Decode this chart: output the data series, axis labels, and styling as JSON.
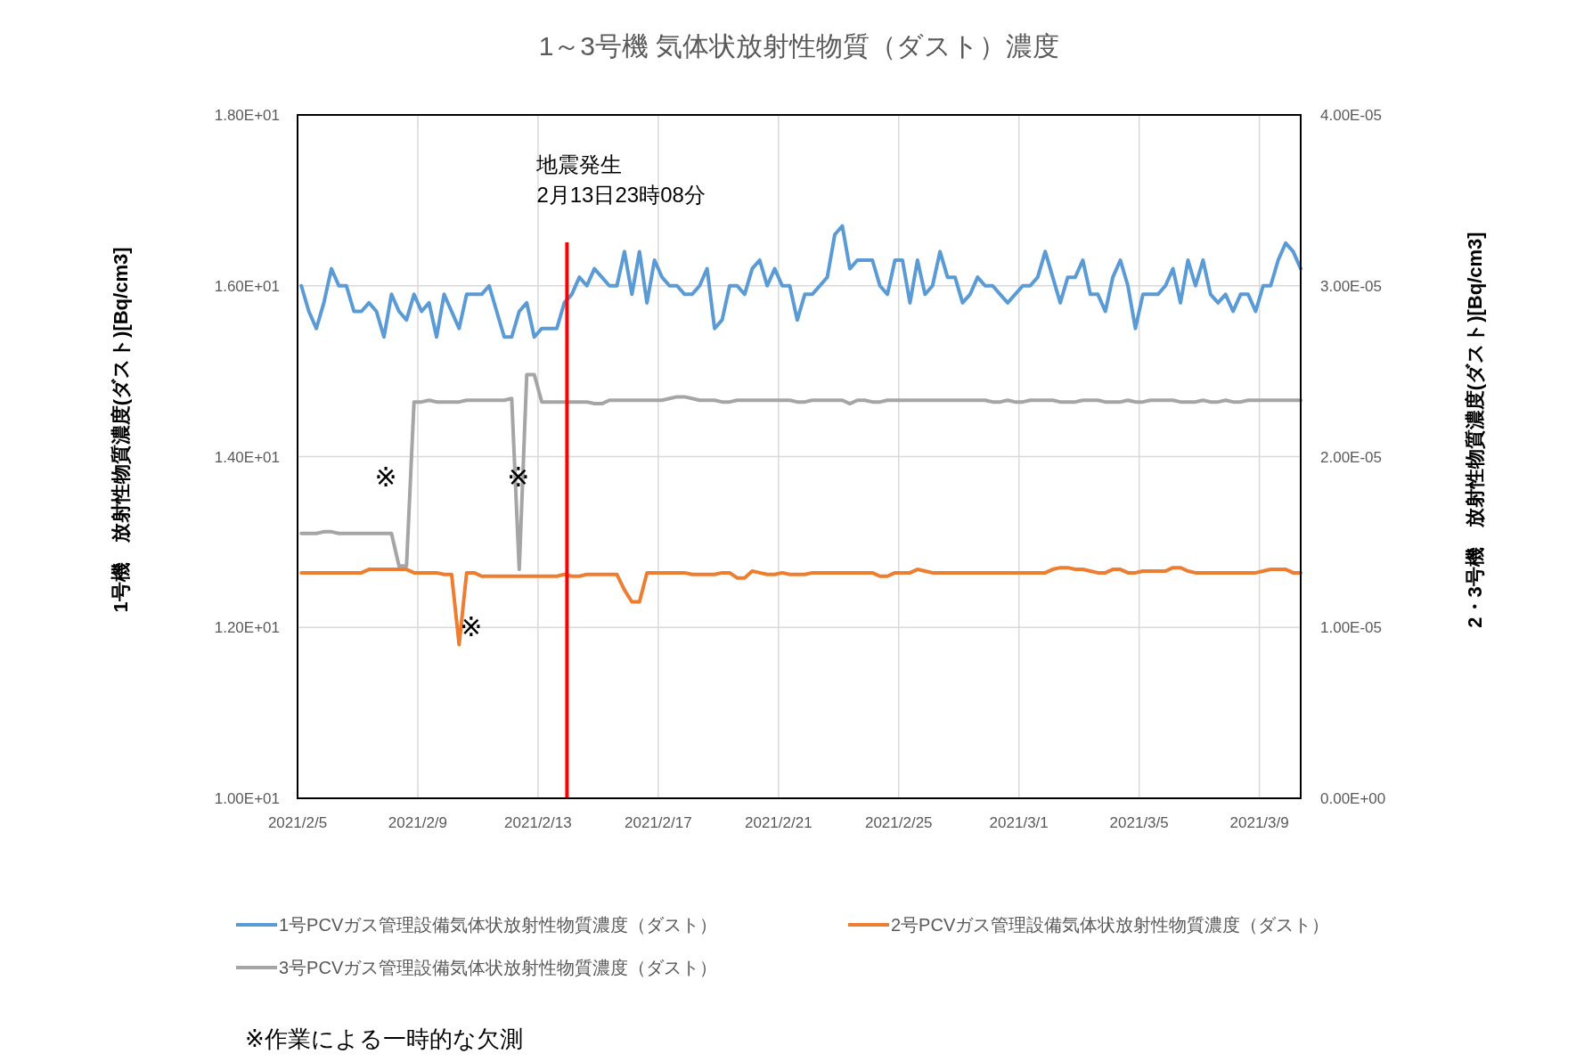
{
  "chart_data": {
    "type": "line",
    "title": "1～3号機 気体状放射性物質（ダスト）濃度",
    "ylabel": "1号機　放射性物質濃度(ダスト)[Bq/cm3]",
    "y2label": "2・3号機　放射性物質濃度(ダスト)[Bq/cm3]",
    "x": [
      "2021-02-05T03:00",
      "2021-02-05T09:00",
      "2021-02-05T15:00",
      "2021-02-05T21:00",
      "2021-02-06T03:00",
      "2021-02-06T09:00",
      "2021-02-06T15:00",
      "2021-02-06T21:00",
      "2021-02-07T03:00",
      "2021-02-07T09:00",
      "2021-02-07T15:00",
      "2021-02-07T21:00",
      "2021-02-08T03:00",
      "2021-02-08T09:00",
      "2021-02-08T15:00",
      "2021-02-08T21:00",
      "2021-02-09T03:00",
      "2021-02-09T09:00",
      "2021-02-09T15:00",
      "2021-02-09T21:00",
      "2021-02-10T03:00",
      "2021-02-10T09:00",
      "2021-02-10T15:00",
      "2021-02-10T21:00",
      "2021-02-11T03:00",
      "2021-02-11T09:00",
      "2021-02-11T15:00",
      "2021-02-11T21:00",
      "2021-02-12T03:00",
      "2021-02-12T09:00",
      "2021-02-12T15:00",
      "2021-02-12T21:00",
      "2021-02-13T03:00",
      "2021-02-13T09:00",
      "2021-02-13T15:00",
      "2021-02-13T21:00",
      "2021-02-14T03:00",
      "2021-02-14T09:00",
      "2021-02-14T15:00",
      "2021-02-14T21:00",
      "2021-02-15T03:00",
      "2021-02-15T09:00",
      "2021-02-15T15:00",
      "2021-02-15T21:00",
      "2021-02-16T03:00",
      "2021-02-16T09:00",
      "2021-02-16T15:00",
      "2021-02-16T21:00",
      "2021-02-17T03:00",
      "2021-02-17T09:00",
      "2021-02-17T15:00",
      "2021-02-17T21:00",
      "2021-02-18T03:00",
      "2021-02-18T09:00",
      "2021-02-18T15:00",
      "2021-02-18T21:00",
      "2021-02-19T03:00",
      "2021-02-19T09:00",
      "2021-02-19T15:00",
      "2021-02-19T21:00",
      "2021-02-20T03:00",
      "2021-02-20T09:00",
      "2021-02-20T15:00",
      "2021-02-20T21:00",
      "2021-02-21T03:00",
      "2021-02-21T09:00",
      "2021-02-21T15:00",
      "2021-02-21T21:00",
      "2021-02-22T03:00",
      "2021-02-22T09:00",
      "2021-02-22T15:00",
      "2021-02-22T21:00",
      "2021-02-23T03:00",
      "2021-02-23T09:00",
      "2021-02-23T15:00",
      "2021-02-23T21:00",
      "2021-02-24T03:00",
      "2021-02-24T09:00",
      "2021-02-24T15:00",
      "2021-02-24T21:00",
      "2021-02-25T03:00",
      "2021-02-25T09:00",
      "2021-02-25T15:00",
      "2021-02-25T21:00",
      "2021-02-26T03:00",
      "2021-02-26T09:00",
      "2021-02-26T15:00",
      "2021-02-26T21:00",
      "2021-02-27T03:00",
      "2021-02-27T09:00",
      "2021-02-27T15:00",
      "2021-02-27T21:00",
      "2021-02-28T03:00",
      "2021-02-28T09:00",
      "2021-02-28T15:00",
      "2021-02-28T21:00",
      "2021-03-01T03:00",
      "2021-03-01T09:00",
      "2021-03-01T15:00",
      "2021-03-01T21:00",
      "2021-03-02T03:00",
      "2021-03-02T09:00",
      "2021-03-02T15:00",
      "2021-03-02T21:00",
      "2021-03-03T03:00",
      "2021-03-03T09:00",
      "2021-03-03T15:00",
      "2021-03-03T21:00",
      "2021-03-04T03:00",
      "2021-03-04T09:00",
      "2021-03-04T15:00",
      "2021-03-04T21:00",
      "2021-03-05T03:00",
      "2021-03-05T09:00",
      "2021-03-05T15:00",
      "2021-03-05T21:00",
      "2021-03-06T03:00",
      "2021-03-06T09:00",
      "2021-03-06T15:00",
      "2021-03-06T21:00",
      "2021-03-07T03:00",
      "2021-03-07T09:00",
      "2021-03-07T15:00",
      "2021-03-07T21:00",
      "2021-03-08T03:00",
      "2021-03-08T09:00",
      "2021-03-08T15:00",
      "2021-03-08T21:00",
      "2021-03-09T03:00",
      "2021-03-09T09:00",
      "2021-03-09T15:00",
      "2021-03-09T21:00",
      "2021-03-10T03:00",
      "2021-03-10T09:00"
    ],
    "series": [
      {
        "name": "1号PCVガス管理設備気体状放射性物質濃度（ダスト）",
        "color": "#5b9bd5",
        "values": [
          16.0,
          15.7,
          15.5,
          15.8,
          16.2,
          16.0,
          16.0,
          15.7,
          15.7,
          15.8,
          15.7,
          15.4,
          15.9,
          15.7,
          15.6,
          15.9,
          15.7,
          15.8,
          15.4,
          15.9,
          15.7,
          15.5,
          15.9,
          15.9,
          15.9,
          16.0,
          15.7,
          15.4,
          15.4,
          15.7,
          15.8,
          15.4,
          15.5,
          15.5,
          15.5,
          15.8,
          15.9,
          16.1,
          16.0,
          16.2,
          16.1,
          16.0,
          16.0,
          16.4,
          15.9,
          16.4,
          15.8,
          16.3,
          16.1,
          16.0,
          16.0,
          15.9,
          15.9,
          16.0,
          16.2,
          15.5,
          15.6,
          16.0,
          16.0,
          15.9,
          16.2,
          16.3,
          16.0,
          16.2,
          16.0,
          16.0,
          15.6,
          15.9,
          15.9,
          16.0,
          16.1,
          16.6,
          16.7,
          16.2,
          16.3,
          16.3,
          16.3,
          16.0,
          15.9,
          16.3,
          16.3,
          15.8,
          16.3,
          15.9,
          16.0,
          16.4,
          16.1,
          16.1,
          15.8,
          15.9,
          16.1,
          16.0,
          16.0,
          15.9,
          15.8,
          15.9,
          16.0,
          16.0,
          16.1,
          16.4,
          16.1,
          15.8,
          16.1,
          16.1,
          16.3,
          15.9,
          15.9,
          15.7,
          16.1,
          16.3,
          16.0,
          15.5,
          15.9,
          15.9,
          15.9,
          16.0,
          16.2,
          15.8,
          16.3,
          16.0,
          16.3,
          15.9,
          15.8,
          15.9,
          15.7,
          15.9,
          15.9,
          15.7,
          16.0,
          16.0,
          16.3,
          16.5,
          16.4,
          16.2
        ]
      },
      {
        "name": "2号PCVガス管理設備気体状放射性物質濃度（ダスト）",
        "color": "#ed7d31",
        "axis": "y2",
        "values": [
          1.32e-05,
          1.32e-05,
          1.32e-05,
          1.32e-05,
          1.32e-05,
          1.32e-05,
          1.32e-05,
          1.32e-05,
          1.32e-05,
          1.34e-05,
          1.34e-05,
          1.34e-05,
          1.34e-05,
          1.34e-05,
          1.34e-05,
          1.32e-05,
          1.32e-05,
          1.32e-05,
          1.32e-05,
          1.31e-05,
          1.31e-05,
          9e-06,
          1.32e-05,
          1.32e-05,
          1.3e-05,
          1.3e-05,
          1.3e-05,
          1.3e-05,
          1.3e-05,
          1.3e-05,
          1.3e-05,
          1.3e-05,
          1.3e-05,
          1.3e-05,
          1.3e-05,
          1.31e-05,
          1.3e-05,
          1.3e-05,
          1.31e-05,
          1.31e-05,
          1.31e-05,
          1.31e-05,
          1.31e-05,
          1.22e-05,
          1.15e-05,
          1.15e-05,
          1.32e-05,
          1.32e-05,
          1.32e-05,
          1.32e-05,
          1.32e-05,
          1.32e-05,
          1.31e-05,
          1.31e-05,
          1.31e-05,
          1.31e-05,
          1.32e-05,
          1.32e-05,
          1.29e-05,
          1.29e-05,
          1.33e-05,
          1.32e-05,
          1.31e-05,
          1.31e-05,
          1.32e-05,
          1.31e-05,
          1.31e-05,
          1.31e-05,
          1.32e-05,
          1.32e-05,
          1.32e-05,
          1.32e-05,
          1.32e-05,
          1.32e-05,
          1.32e-05,
          1.32e-05,
          1.32e-05,
          1.3e-05,
          1.3e-05,
          1.32e-05,
          1.32e-05,
          1.32e-05,
          1.34e-05,
          1.33e-05,
          1.32e-05,
          1.32e-05,
          1.32e-05,
          1.32e-05,
          1.32e-05,
          1.32e-05,
          1.32e-05,
          1.32e-05,
          1.32e-05,
          1.32e-05,
          1.32e-05,
          1.32e-05,
          1.32e-05,
          1.32e-05,
          1.32e-05,
          1.32e-05,
          1.34e-05,
          1.35e-05,
          1.35e-05,
          1.34e-05,
          1.34e-05,
          1.33e-05,
          1.32e-05,
          1.32e-05,
          1.34e-05,
          1.34e-05,
          1.32e-05,
          1.32e-05,
          1.33e-05,
          1.33e-05,
          1.33e-05,
          1.33e-05,
          1.35e-05,
          1.35e-05,
          1.33e-05,
          1.32e-05,
          1.32e-05,
          1.32e-05,
          1.32e-05,
          1.32e-05,
          1.32e-05,
          1.32e-05,
          1.32e-05,
          1.32e-05,
          1.33e-05,
          1.34e-05,
          1.34e-05,
          1.34e-05,
          1.32e-05,
          1.32e-05
        ]
      },
      {
        "name": "3号PCVガス管理設備気体状放射性物質濃度（ダスト）",
        "color": "#a5a5a5",
        "axis": "y2",
        "values": [
          1.55e-05,
          1.55e-05,
          1.55e-05,
          1.56e-05,
          1.56e-05,
          1.55e-05,
          1.55e-05,
          1.55e-05,
          1.55e-05,
          1.55e-05,
          1.55e-05,
          1.55e-05,
          1.55e-05,
          1.36e-05,
          1.36e-05,
          2.32e-05,
          2.32e-05,
          2.33e-05,
          2.32e-05,
          2.32e-05,
          2.32e-05,
          2.32e-05,
          2.33e-05,
          2.33e-05,
          2.33e-05,
          2.33e-05,
          2.33e-05,
          2.33e-05,
          2.34e-05,
          1.34e-05,
          2.48e-05,
          2.48e-05,
          2.32e-05,
          2.32e-05,
          2.32e-05,
          2.32e-05,
          2.32e-05,
          2.32e-05,
          2.32e-05,
          2.31e-05,
          2.31e-05,
          2.33e-05,
          2.33e-05,
          2.33e-05,
          2.33e-05,
          2.33e-05,
          2.33e-05,
          2.33e-05,
          2.33e-05,
          2.34e-05,
          2.35e-05,
          2.35e-05,
          2.34e-05,
          2.33e-05,
          2.33e-05,
          2.33e-05,
          2.32e-05,
          2.32e-05,
          2.33e-05,
          2.33e-05,
          2.33e-05,
          2.33e-05,
          2.33e-05,
          2.33e-05,
          2.33e-05,
          2.33e-05,
          2.32e-05,
          2.32e-05,
          2.33e-05,
          2.33e-05,
          2.33e-05,
          2.33e-05,
          2.33e-05,
          2.31e-05,
          2.33e-05,
          2.33e-05,
          2.32e-05,
          2.32e-05,
          2.33e-05,
          2.33e-05,
          2.33e-05,
          2.33e-05,
          2.33e-05,
          2.33e-05,
          2.33e-05,
          2.33e-05,
          2.33e-05,
          2.33e-05,
          2.33e-05,
          2.33e-05,
          2.33e-05,
          2.33e-05,
          2.32e-05,
          2.32e-05,
          2.33e-05,
          2.32e-05,
          2.32e-05,
          2.33e-05,
          2.33e-05,
          2.33e-05,
          2.33e-05,
          2.32e-05,
          2.32e-05,
          2.32e-05,
          2.33e-05,
          2.33e-05,
          2.33e-05,
          2.32e-05,
          2.32e-05,
          2.32e-05,
          2.33e-05,
          2.32e-05,
          2.32e-05,
          2.33e-05,
          2.33e-05,
          2.33e-05,
          2.33e-05,
          2.32e-05,
          2.32e-05,
          2.32e-05,
          2.33e-05,
          2.32e-05,
          2.32e-05,
          2.33e-05,
          2.32e-05,
          2.32e-05,
          2.33e-05,
          2.33e-05,
          2.33e-05,
          2.33e-05,
          2.33e-05,
          2.33e-05,
          2.33e-05,
          2.33e-05
        ]
      }
    ],
    "xlim": [
      "2021-02-05",
      "2021-03-10T09:00"
    ],
    "xticks": [
      {
        "value": "2021-02-05",
        "label": "2021/2/5"
      },
      {
        "value": "2021-02-09",
        "label": "2021/2/9"
      },
      {
        "value": "2021-02-13",
        "label": "2021/2/13"
      },
      {
        "value": "2021-02-17",
        "label": "2021/2/17"
      },
      {
        "value": "2021-02-21",
        "label": "2021/2/21"
      },
      {
        "value": "2021-02-25",
        "label": "2021/2/25"
      },
      {
        "value": "2021-03-01",
        "label": "2021/3/1"
      },
      {
        "value": "2021-03-05",
        "label": "2021/3/5"
      },
      {
        "value": "2021-03-09",
        "label": "2021/3/9"
      }
    ],
    "ylim": [
      10,
      18
    ],
    "yticks": [
      {
        "value": 10,
        "label": "1.00E+01"
      },
      {
        "value": 12,
        "label": "1.20E+01"
      },
      {
        "value": 14,
        "label": "1.40E+01"
      },
      {
        "value": 16,
        "label": "1.60E+01"
      },
      {
        "value": 18,
        "label": "1.80E+01"
      }
    ],
    "y2lim": [
      0,
      4e-05
    ],
    "y2ticks": [
      {
        "value": 0,
        "label": "0.00E+00"
      },
      {
        "value": 1e-05,
        "label": "1.00E-05"
      },
      {
        "value": 2e-05,
        "label": "2.00E-05"
      },
      {
        "value": 3e-05,
        "label": "3.00E-05"
      },
      {
        "value": 4e-05,
        "label": "4.00E-05"
      }
    ],
    "ref_lines": [
      {
        "axis": "x",
        "value": "2021-02-13T23:08",
        "label": "地震発生\n2月13日23時08分",
        "color": "#ff0000"
      }
    ],
    "annotations": [
      "※",
      "※",
      "※",
      "※作業による一時的な欠測"
    ],
    "grid": true,
    "legend": "bottom",
    "marker": "none",
    "line_style": "solid"
  }
}
